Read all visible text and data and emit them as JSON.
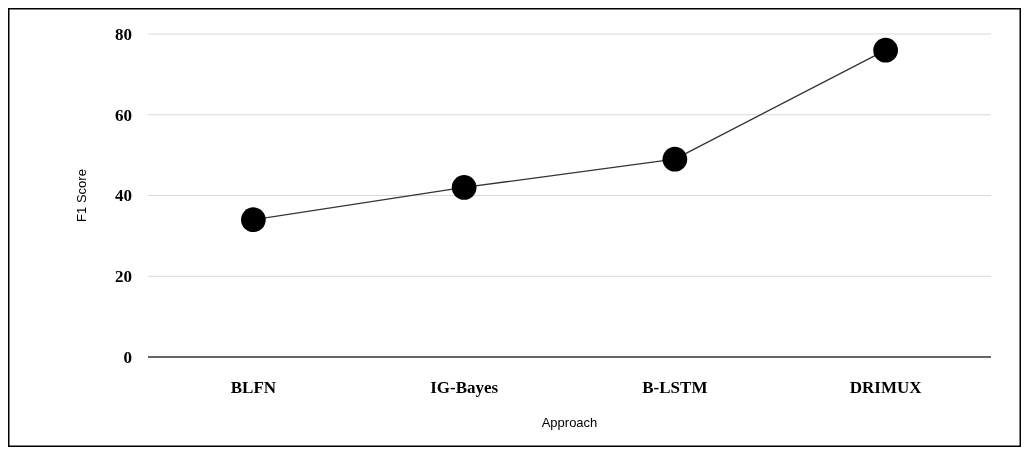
{
  "chart_data": {
    "type": "line",
    "xlabel": "Approach",
    "ylabel": "F1 Score",
    "categories": [
      "BLFN",
      "IG-Bayes",
      "B-LSTM",
      "DRIMUX"
    ],
    "series": [
      {
        "color": "#000000",
        "values": [
          34,
          42,
          49,
          76
        ]
      }
    ],
    "ylim": [
      0,
      80
    ],
    "yticks": [
      0,
      20,
      40,
      60,
      80
    ],
    "grid": "y",
    "marker": "circle"
  }
}
